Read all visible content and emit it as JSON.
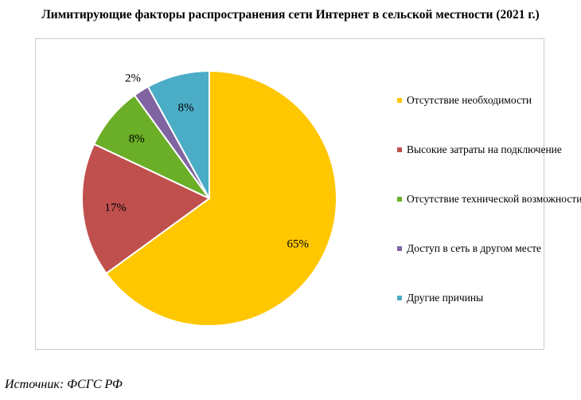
{
  "chart_data": {
    "type": "pie",
    "title": "Лимитирующие факторы распространения сети Интернет в сельской местности (2021 г.)",
    "slices": [
      {
        "label": "Отсутствие необходимости",
        "value": 65,
        "data_label": "65%",
        "color": "#FFC700"
      },
      {
        "label": "Высокие затраты на подключение",
        "value": 17,
        "data_label": "17%",
        "color": "#C0504D"
      },
      {
        "label": "Отсутствие технической возможности",
        "value": 8,
        "data_label": "8%",
        "color": "#6BAE27"
      },
      {
        "label": "Доступ в сеть в другом месте",
        "value": 2,
        "data_label": "2%",
        "color": "#8064A2"
      },
      {
        "label": "Другие причины",
        "value": 8,
        "data_label": "8%",
        "color": "#4BACC6"
      }
    ],
    "legend_position": "right"
  },
  "source": "Источник: ФСГС РФ"
}
